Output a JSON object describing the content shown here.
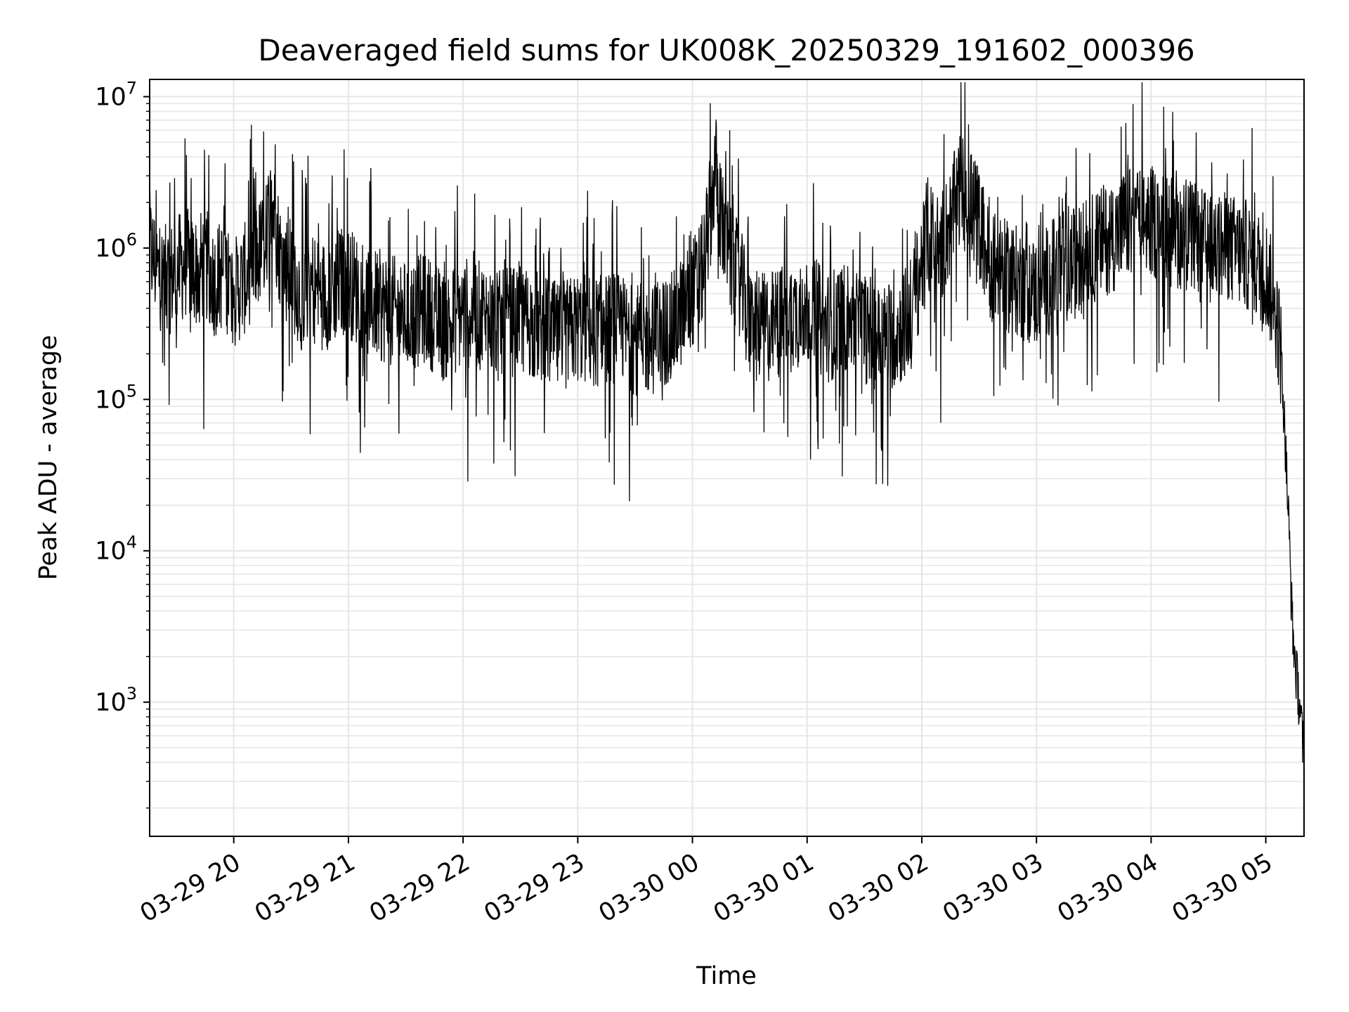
{
  "chart_data": {
    "type": "line",
    "title": "Deaveraged field sums for UK008K_20250329_191602_000396",
    "xlabel": "Time",
    "ylabel": "Peak ADU - average",
    "yscale": "log",
    "xlim": [
      "2025-03-29 19:16",
      "2025-03-30 05:20"
    ],
    "ylim": [
      130,
      13000000
    ],
    "grid": true,
    "line_color": "#000000",
    "grid_color": "#e6e6e6",
    "x_ticks": [
      {
        "value": "2025-03-29 20:00",
        "label": "03-29 20"
      },
      {
        "value": "2025-03-29 21:00",
        "label": "03-29 21"
      },
      {
        "value": "2025-03-29 22:00",
        "label": "03-29 22"
      },
      {
        "value": "2025-03-29 23:00",
        "label": "03-29 23"
      },
      {
        "value": "2025-03-30 00:00",
        "label": "03-30 00"
      },
      {
        "value": "2025-03-30 01:00",
        "label": "03-30 01"
      },
      {
        "value": "2025-03-30 02:00",
        "label": "03-30 02"
      },
      {
        "value": "2025-03-30 03:00",
        "label": "03-30 03"
      },
      {
        "value": "2025-03-30 04:00",
        "label": "03-30 04"
      },
      {
        "value": "2025-03-30 05:00",
        "label": "03-30 05"
      }
    ],
    "y_ticks": [
      {
        "value": 1000,
        "label": "10",
        "exp": "3"
      },
      {
        "value": 10000,
        "label": "10",
        "exp": "4"
      },
      {
        "value": 100000,
        "label": "10",
        "exp": "5"
      },
      {
        "value": 1000000,
        "label": "10",
        "exp": "6"
      },
      {
        "value": 10000000,
        "label": "10",
        "exp": "7"
      }
    ],
    "series": [
      {
        "x": [
          "2025-03-29 19:16",
          "2025-03-29 19:20",
          "2025-03-29 19:25",
          "2025-03-29 19:30",
          "2025-03-29 19:35",
          "2025-03-29 19:40",
          "2025-03-29 19:45",
          "2025-03-29 19:50",
          "2025-03-29 19:55",
          "2025-03-29 20:00",
          "2025-03-29 20:05",
          "2025-03-29 20:10",
          "2025-03-29 20:15",
          "2025-03-29 20:20",
          "2025-03-29 20:25",
          "2025-03-29 20:30",
          "2025-03-29 20:35",
          "2025-03-29 20:40",
          "2025-03-29 20:45",
          "2025-03-29 20:50",
          "2025-03-29 20:55",
          "2025-03-29 21:00",
          "2025-03-29 21:10",
          "2025-03-29 21:20",
          "2025-03-29 21:30",
          "2025-03-29 21:40",
          "2025-03-29 21:50",
          "2025-03-29 22:00",
          "2025-03-29 22:10",
          "2025-03-29 22:20",
          "2025-03-29 22:30",
          "2025-03-29 22:40",
          "2025-03-29 22:50",
          "2025-03-29 23:00",
          "2025-03-29 23:10",
          "2025-03-29 23:20",
          "2025-03-29 23:30",
          "2025-03-29 23:40",
          "2025-03-29 23:50",
          "2025-03-29 23:55",
          "2025-03-30 00:00",
          "2025-03-30 00:05",
          "2025-03-30 00:10",
          "2025-03-30 00:12",
          "2025-03-30 00:15",
          "2025-03-30 00:20",
          "2025-03-30 00:25",
          "2025-03-30 00:30",
          "2025-03-30 00:40",
          "2025-03-30 00:50",
          "2025-03-30 01:00",
          "2025-03-30 01:10",
          "2025-03-30 01:20",
          "2025-03-30 01:30",
          "2025-03-30 01:40",
          "2025-03-30 01:50",
          "2025-03-30 01:55",
          "2025-03-30 02:00",
          "2025-03-30 02:05",
          "2025-03-30 02:10",
          "2025-03-30 02:15",
          "2025-03-30 02:20",
          "2025-03-30 02:25",
          "2025-03-30 02:30",
          "2025-03-30 02:35",
          "2025-03-30 02:40",
          "2025-03-30 02:50",
          "2025-03-30 03:00",
          "2025-03-30 03:10",
          "2025-03-30 03:20",
          "2025-03-30 03:30",
          "2025-03-30 03:40",
          "2025-03-30 03:50",
          "2025-03-30 04:00",
          "2025-03-30 04:10",
          "2025-03-30 04:20",
          "2025-03-30 04:30",
          "2025-03-30 04:40",
          "2025-03-30 04:50",
          "2025-03-30 05:00",
          "2025-03-30 05:05",
          "2025-03-30 05:08",
          "2025-03-30 05:10",
          "2025-03-30 05:12",
          "2025-03-30 05:14",
          "2025-03-30 05:16",
          "2025-03-30 05:18",
          "2025-03-30 05:20"
        ],
        "y": [
          1000000,
          700000,
          600000,
          700000,
          800000,
          700000,
          800000,
          600000,
          700000,
          500000,
          600000,
          800000,
          1000000,
          2000000,
          800000,
          700000,
          500000,
          600000,
          500000,
          500000,
          600000,
          600000,
          450000,
          400000,
          350000,
          400000,
          300000,
          380000,
          350000,
          300000,
          350000,
          300000,
          250000,
          300000,
          280000,
          300000,
          250000,
          250000,
          300000,
          400000,
          500000,
          700000,
          2000000,
          3500000,
          1500000,
          800000,
          600000,
          300000,
          300000,
          350000,
          400000,
          300000,
          350000,
          300000,
          250000,
          300000,
          400000,
          800000,
          1200000,
          1000000,
          1500000,
          2500000,
          2000000,
          1500000,
          800000,
          700000,
          600000,
          500000,
          700000,
          800000,
          1000000,
          1200000,
          1500000,
          1500000,
          1300000,
          1200000,
          1000000,
          1000000,
          900000,
          700000,
          400000,
          200000,
          60000,
          15000,
          3000,
          1500,
          900,
          400
        ]
      }
    ]
  }
}
